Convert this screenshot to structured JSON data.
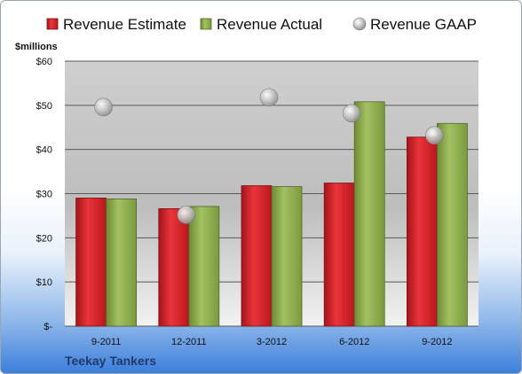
{
  "chart_data": {
    "type": "bar",
    "ylabel": "$millions",
    "ylim": [
      0,
      60
    ],
    "yticks": [
      {
        "value": 0,
        "label": "$-"
      },
      {
        "value": 10,
        "label": "$10"
      },
      {
        "value": 20,
        "label": "$20"
      },
      {
        "value": 30,
        "label": "$30"
      },
      {
        "value": 40,
        "label": "$40"
      },
      {
        "value": 50,
        "label": "$50"
      },
      {
        "value": 60,
        "label": "$60"
      }
    ],
    "categories": [
      "9-2011",
      "12-2011",
      "3-2012",
      "6-2012",
      "9-2012"
    ],
    "series": [
      {
        "name": "Revenue Estimate",
        "kind": "bar",
        "color": "#d91f26",
        "values": [
          29.0,
          26.6,
          31.8,
          32.4,
          42.8
        ]
      },
      {
        "name": "Revenue Actual",
        "kind": "bar",
        "color": "#8fae4f",
        "values": [
          28.8,
          27.1,
          31.6,
          50.8,
          45.9
        ]
      },
      {
        "name": "Revenue GAAP",
        "kind": "marker",
        "color": "#b8b8b8",
        "values": [
          49.6,
          25.2,
          51.8,
          48.2,
          43.2
        ]
      }
    ],
    "grid": true,
    "legend": "top"
  },
  "company": "Teekay Tankers"
}
